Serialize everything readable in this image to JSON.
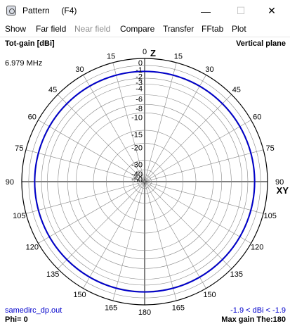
{
  "window": {
    "title": "Pattern",
    "subtitle": "(F4)",
    "minimize_glyph": "—",
    "maximize_glyph": "☐",
    "close_glyph": "✕"
  },
  "menu": [
    "Show",
    "Far field",
    "Near field",
    "Compare",
    "Transfer",
    "FFtab",
    "Plot"
  ],
  "menu_disabled": [
    "Near field"
  ],
  "plot": {
    "quantity_label": "Tot-gain [dBi]",
    "plane_label": "Vertical plane",
    "frequency": "6.979 MHz",
    "top_axis_label": "Z",
    "right_axis_label": "XY",
    "filename": "samedirc_dp.out",
    "gain_range": "-1.9 < dBi < -1.9",
    "phi": "Phi= 0",
    "max_gain": "Max gain The:180"
  },
  "chart_data": {
    "type": "polar",
    "angle_labels": [
      "0",
      "15",
      "30",
      "45",
      "60",
      "75",
      "90",
      "105",
      "120",
      "135",
      "150",
      "165",
      "180",
      "165",
      "150",
      "135",
      "120",
      "105",
      "90",
      "75",
      "60",
      "45",
      "30",
      "15"
    ],
    "angle_values": [
      0,
      15,
      30,
      45,
      60,
      75,
      90,
      105,
      120,
      135,
      150,
      165,
      180,
      -165,
      -150,
      -135,
      -120,
      -105,
      -90,
      -75,
      -60,
      -45,
      -30,
      -15
    ],
    "ring_labels": [
      "0",
      "-1",
      "-2",
      "-3",
      "-4",
      "-6",
      "-8",
      "-10",
      "-15",
      "-20",
      "-30",
      "-40",
      "-50"
    ],
    "ring_values_dbi": [
      0,
      -1,
      -2,
      -3,
      -4,
      -6,
      -8,
      -10,
      -15,
      -20,
      -30,
      -40,
      -50
    ],
    "series": [
      {
        "trace_color": "#0000cc",
        "gain_dbi": -1.9
      }
    ],
    "grid": true,
    "axis_color": "#000000",
    "grid_color": "#888888"
  }
}
